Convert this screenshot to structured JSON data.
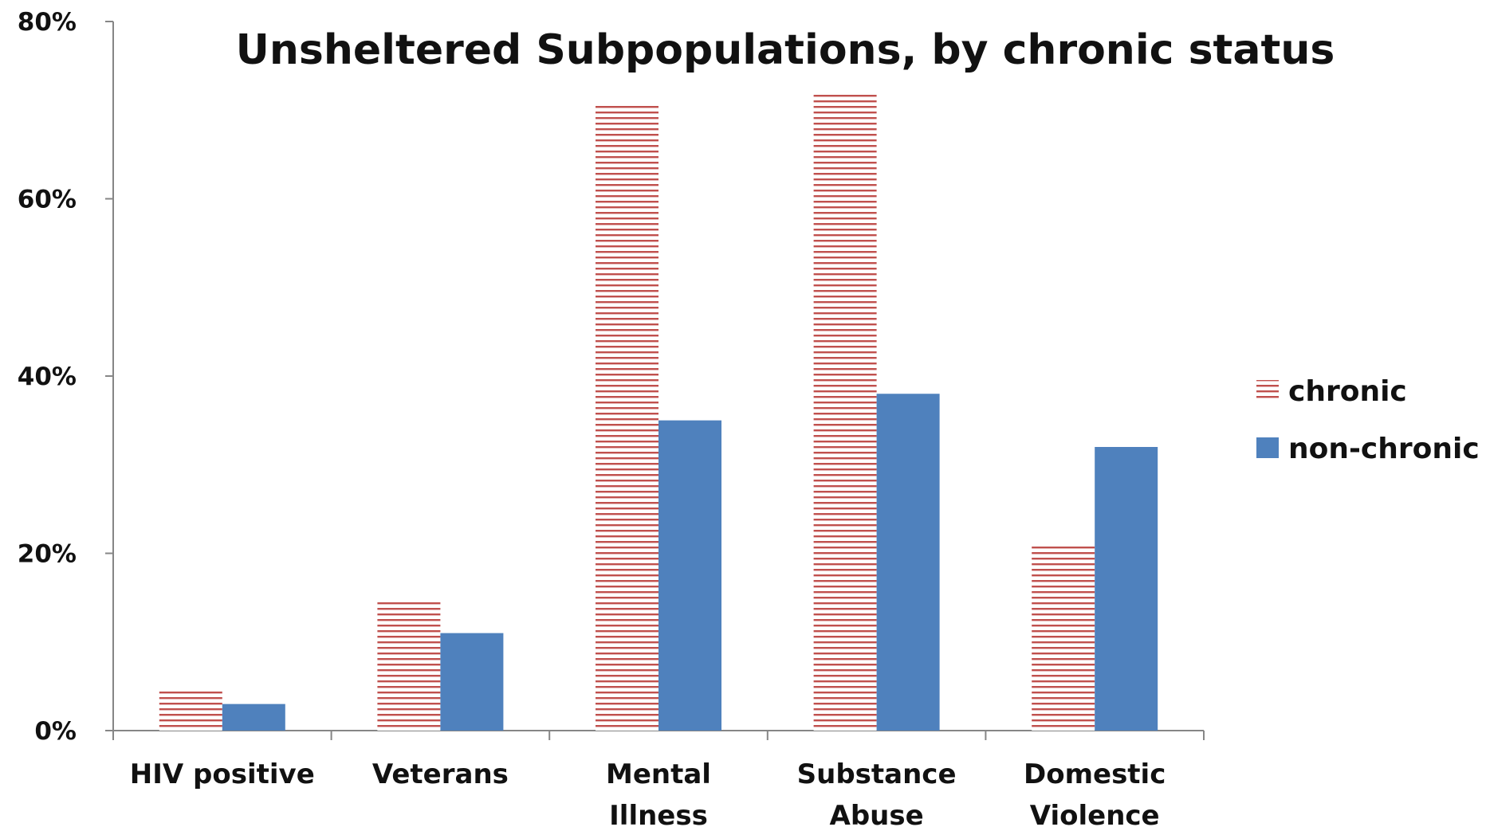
{
  "chart_data": {
    "type": "bar",
    "title": "Unsheltered Subpopulations, by chronic status",
    "categories": [
      [
        "HIV positive"
      ],
      [
        "Veterans"
      ],
      [
        "Mental",
        "Illness"
      ],
      [
        "Substance",
        "Abuse"
      ],
      [
        "Domestic",
        "Violence"
      ]
    ],
    "series": [
      {
        "name": "chronic",
        "values": [
          4.5,
          14.8,
          70.8,
          72.0,
          20.8
        ],
        "color": "#c0504d",
        "pattern": "horizontal-stripes"
      },
      {
        "name": "non-chronic",
        "values": [
          3.0,
          11.0,
          35.0,
          38.0,
          32.0
        ],
        "color": "#4f81bd",
        "pattern": "solid"
      }
    ],
    "ylim": [
      0,
      80
    ],
    "yticks": [
      0,
      20,
      40,
      60,
      80
    ],
    "ytick_labels": [
      "0%",
      "20%",
      "40%",
      "60%",
      "80%"
    ],
    "xlabel": "",
    "ylabel": "",
    "legend": "right",
    "grid": false
  }
}
